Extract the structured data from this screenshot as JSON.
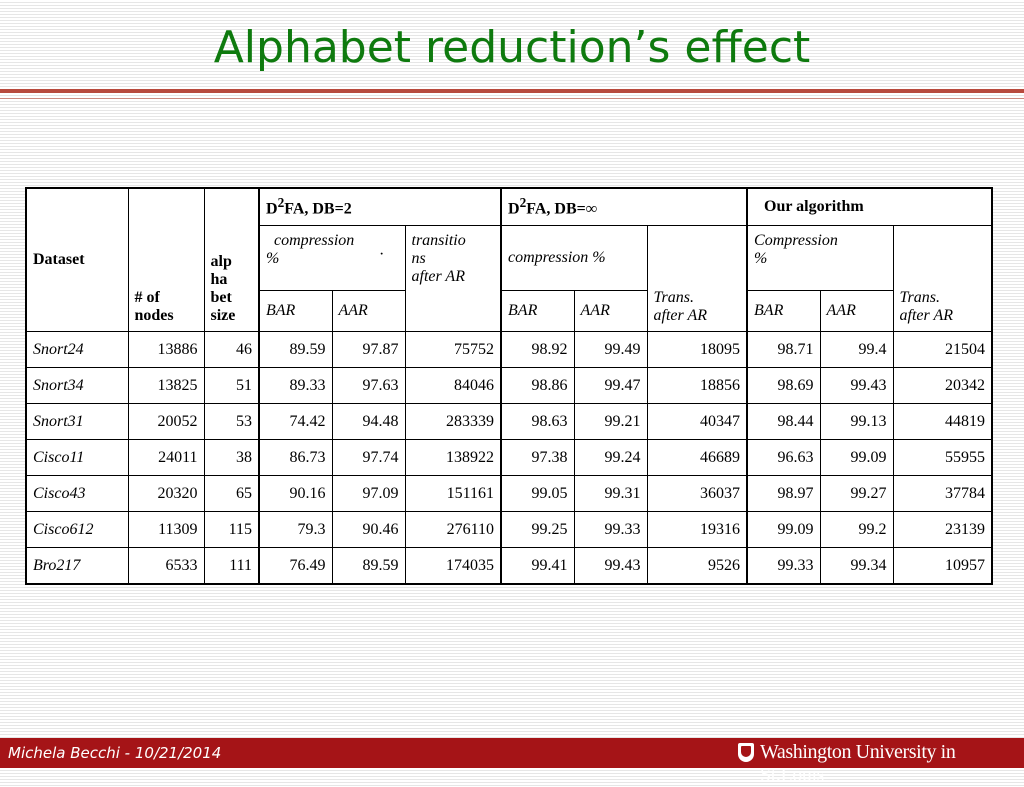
{
  "slide": {
    "title": "Alphabet reduction’s effect",
    "footer_author": "Michela Becchi - 10/21/2014",
    "footer_university": "Washington University in St.Louis"
  },
  "table": {
    "col_dataset": "Dataset",
    "col_nodes": [
      "# of",
      "nodes"
    ],
    "col_alphabet": [
      "alp",
      "ha",
      "bet",
      "size"
    ],
    "groups": {
      "d2fa_db2": {
        "base": "D",
        "sup": "2",
        "rest": "FA, DB=2"
      },
      "d2fa_dbinf": {
        "base": "D",
        "sup": "2",
        "rest": "FA, DB=∞"
      },
      "ours": "Our algorithm"
    },
    "sub": {
      "g1_compression": [
        "compression",
        "%"
      ],
      "g1_dot": "·",
      "g1_transitions": [
        "transitio",
        "ns",
        "after AR"
      ],
      "g2_compression": "compression %",
      "g2_trans": [
        "Trans.",
        "after AR"
      ],
      "g3_compression": [
        "Compression",
        "%"
      ],
      "g3_trans": [
        "Trans.",
        "after AR"
      ],
      "bar": "BAR",
      "aar": "AAR"
    },
    "rows": [
      [
        "Snort24",
        "13886",
        "46",
        "89.59",
        "97.87",
        "75752",
        "98.92",
        "99.49",
        "18095",
        "98.71",
        "99.4",
        "21504"
      ],
      [
        "Snort34",
        "13825",
        "51",
        "89.33",
        "97.63",
        "84046",
        "98.86",
        "99.47",
        "18856",
        "98.69",
        "99.43",
        "20342"
      ],
      [
        "Snort31",
        "20052",
        "53",
        "74.42",
        "94.48",
        "283339",
        "98.63",
        "99.21",
        "40347",
        "98.44",
        "99.13",
        "44819"
      ],
      [
        "Cisco11",
        "24011",
        "38",
        "86.73",
        "97.74",
        "138922",
        "97.38",
        "99.24",
        "46689",
        "96.63",
        "99.09",
        "55955"
      ],
      [
        "Cisco43",
        "20320",
        "65",
        "90.16",
        "97.09",
        "151161",
        "99.05",
        "99.31",
        "36037",
        "98.97",
        "99.27",
        "37784"
      ],
      [
        "Cisco612",
        "11309",
        "115",
        "79.3",
        "90.46",
        "276110",
        "99.25",
        "99.33",
        "19316",
        "99.09",
        "99.2",
        "23139"
      ],
      [
        "Bro217",
        "6533",
        "111",
        "76.49",
        "89.59",
        "174035",
        "99.41",
        "99.43",
        "9526",
        "99.33",
        "99.34",
        "10957"
      ]
    ]
  },
  "colors": {
    "title": "#0e7a0e",
    "footer_bar": "#a51417",
    "title_rule": "#b84a3d"
  }
}
